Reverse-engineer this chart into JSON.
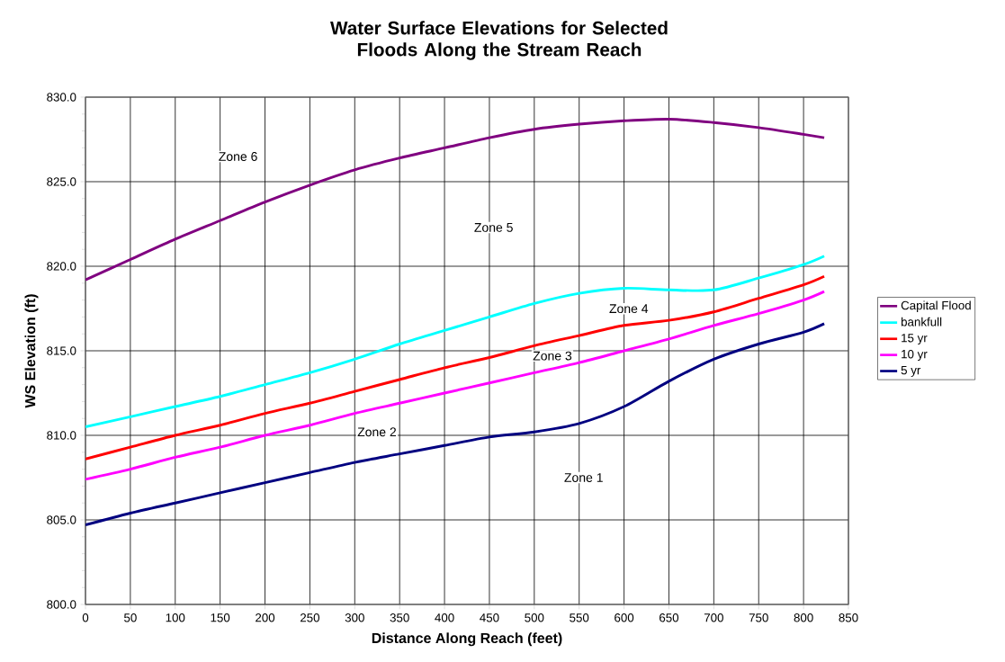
{
  "chart_data": {
    "type": "line",
    "title": "Water Surface Elevations for Selected Floods Along the Stream Reach",
    "xlabel": "Distance Along Reach (feet)",
    "ylabel": "WS Elevation (ft)",
    "x": [
      0,
      50,
      100,
      150,
      200,
      250,
      300,
      350,
      400,
      450,
      500,
      550,
      600,
      650,
      700,
      750,
      800,
      823
    ],
    "series": [
      {
        "name": "Capital Flood",
        "color": "#800080",
        "values": [
          819.2,
          820.4,
          821.6,
          822.7,
          823.8,
          824.8,
          825.7,
          826.4,
          827.0,
          827.6,
          828.1,
          828.4,
          828.6,
          828.7,
          828.5,
          828.2,
          827.8,
          827.6
        ]
      },
      {
        "name": "bankfull",
        "color": "#00ffff",
        "values": [
          810.5,
          811.1,
          811.7,
          812.3,
          813.0,
          813.7,
          814.5,
          815.4,
          816.2,
          817.0,
          817.8,
          818.4,
          818.7,
          818.6,
          818.6,
          819.3,
          820.1,
          820.6
        ]
      },
      {
        "name": "15 yr",
        "color": "#ff0000",
        "values": [
          808.6,
          809.3,
          810.0,
          810.6,
          811.3,
          811.9,
          812.6,
          813.3,
          814.0,
          814.6,
          815.3,
          815.9,
          816.5,
          816.8,
          817.3,
          818.1,
          818.9,
          819.4
        ]
      },
      {
        "name": "10 yr",
        "color": "#ff00ff",
        "values": [
          807.4,
          808.0,
          808.7,
          809.3,
          810.0,
          810.6,
          811.3,
          811.9,
          812.5,
          813.1,
          813.7,
          814.3,
          815.0,
          815.7,
          816.5,
          817.2,
          818.0,
          818.5
        ]
      },
      {
        "name": "5 yr",
        "color": "#000080",
        "values": [
          804.7,
          805.4,
          806.0,
          806.6,
          807.2,
          807.8,
          808.4,
          808.9,
          809.4,
          809.9,
          810.2,
          810.7,
          811.7,
          813.2,
          814.5,
          815.4,
          816.1,
          816.6
        ]
      }
    ],
    "xlim": [
      0,
      850
    ],
    "xticks": [
      0,
      50,
      100,
      150,
      200,
      250,
      300,
      350,
      400,
      450,
      500,
      550,
      600,
      650,
      700,
      750,
      800,
      850
    ],
    "ylim": [
      800,
      830
    ],
    "yticks": [
      {
        "value": 800,
        "label": "800.0"
      },
      {
        "value": 805,
        "label": "805.0"
      },
      {
        "value": 810,
        "label": "810.0"
      },
      {
        "value": 815,
        "label": "815.0"
      },
      {
        "value": 820,
        "label": "820.0"
      },
      {
        "value": 825,
        "label": "825.0"
      },
      {
        "value": 830,
        "label": "830.0"
      }
    ],
    "annotations": [
      "Zone 6",
      "Zone 5",
      "Zone 4",
      "Zone 3",
      "Zone 2",
      "Zone 1"
    ],
    "grid": true,
    "legend": "right",
    "marker": "none",
    "line_style": "solid"
  }
}
